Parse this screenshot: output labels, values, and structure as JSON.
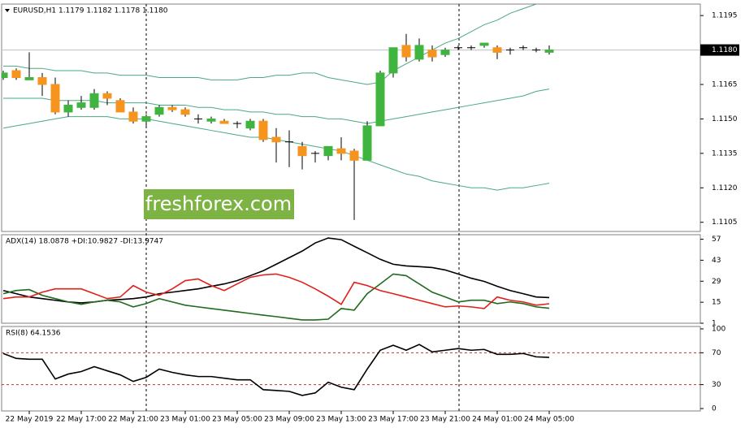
{
  "chart_data": [
    {
      "type": "candlestick",
      "title": "EURUSD,H1  1.1179 1.1182 1.1178 1.1180",
      "watermark": "freshforex.com",
      "categories": [
        null,
        null,
        "22 May 2019",
        null,
        null,
        null,
        "22 May 17:00",
        null,
        null,
        null,
        "22 May 21:00",
        null,
        null,
        null,
        "23 May 01:00",
        null,
        null,
        null,
        "23 May 05:00",
        null,
        null,
        null,
        "23 May 09:00",
        null,
        null,
        null,
        "23 May 13:00",
        null,
        null,
        null,
        "23 May 17:00",
        null,
        null,
        null,
        "23 May 21:00",
        null,
        null,
        null,
        "24 May 01:00",
        null,
        null,
        null,
        "24 May 05:00"
      ],
      "open": [
        1.1168,
        1.1171,
        1.1167,
        1.1168,
        1.1165,
        1.1153,
        1.1155,
        1.1155,
        1.1161,
        1.1158,
        1.1153,
        1.1149,
        1.1152,
        1.1155,
        1.1154,
        1.115,
        1.1149,
        1.1149,
        1.1148,
        1.1146,
        1.1149,
        1.1142,
        1.114,
        1.1138,
        1.1135,
        1.1134,
        1.1137,
        1.1136,
        1.1132,
        1.1147,
        1.117,
        1.1182,
        1.1176,
        1.118,
        1.1178,
        1.1181,
        1.1181,
        1.1182,
        1.1181,
        1.118,
        1.1181,
        1.118,
        1.1179
      ],
      "high": [
        1.1171,
        1.1172,
        1.1179,
        1.117,
        1.1168,
        1.1158,
        1.116,
        1.1163,
        1.1162,
        1.1159,
        1.1155,
        1.1152,
        1.1156,
        1.1156,
        1.1155,
        1.1152,
        1.1151,
        1.115,
        1.1149,
        1.115,
        1.115,
        1.1146,
        1.1145,
        1.114,
        1.1136,
        1.1138,
        1.1142,
        1.1137,
        1.1149,
        1.1171,
        1.1181,
        1.1187,
        1.1185,
        1.1182,
        1.1181,
        1.1182,
        1.1182,
        1.1183,
        1.1182,
        1.1181,
        1.1182,
        1.1181,
        1.1182
      ],
      "low": [
        1.1167,
        1.1167,
        1.1167,
        1.116,
        1.1152,
        1.1151,
        1.1154,
        1.1154,
        1.1156,
        1.1153,
        1.1148,
        1.1147,
        1.1151,
        1.1153,
        1.1151,
        1.1148,
        1.1148,
        1.1148,
        1.1146,
        1.1145,
        1.114,
        1.1131,
        1.1129,
        1.1128,
        1.1131,
        1.1132,
        1.1132,
        1.1106,
        1.1132,
        1.1147,
        1.1168,
        1.1175,
        1.1175,
        1.1175,
        1.1177,
        1.118,
        1.118,
        1.1181,
        1.1176,
        1.1178,
        1.118,
        1.1179,
        1.1178
      ],
      "close": [
        1.117,
        1.1168,
        1.1168,
        1.1165,
        1.1153,
        1.1156,
        1.1157,
        1.1161,
        1.1159,
        1.1153,
        1.1149,
        1.1151,
        1.1155,
        1.1154,
        1.1152,
        1.115,
        1.115,
        1.1148,
        1.1148,
        1.1149,
        1.1141,
        1.114,
        1.114,
        1.1134,
        1.1135,
        1.1138,
        1.1135,
        1.1132,
        1.1147,
        1.117,
        1.1181,
        1.1177,
        1.1182,
        1.1177,
        1.118,
        1.1181,
        1.1181,
        1.1183,
        1.1179,
        1.118,
        1.1181,
        1.118,
        1.118
      ],
      "up_color": "#3fb53f",
      "down_color": "#f7941d",
      "flat_color": "#000000",
      "bands": {
        "color": "#4aa883",
        "upper": [
          1.1173,
          1.1173,
          1.1172,
          1.1172,
          1.1171,
          1.1171,
          1.1171,
          1.117,
          1.117,
          1.1169,
          1.1169,
          1.1169,
          1.1168,
          1.1168,
          1.1168,
          1.1168,
          1.1167,
          1.1167,
          1.1167,
          1.1168,
          1.1168,
          1.1169,
          1.1169,
          1.117,
          1.117,
          1.1168,
          1.1167,
          1.1166,
          1.1165,
          1.1166,
          1.1171,
          1.1174,
          1.1177,
          1.118,
          1.1183,
          1.1185,
          1.1188,
          1.1191,
          1.1193,
          1.1196,
          1.1198,
          1.12,
          1.1202
        ],
        "middle": [
          1.1159,
          1.1159,
          1.1159,
          1.1159,
          1.1158,
          1.1158,
          1.1158,
          1.1158,
          1.1157,
          1.1157,
          1.1157,
          1.1157,
          1.1156,
          1.1156,
          1.1156,
          1.1155,
          1.1155,
          1.1154,
          1.1154,
          1.1153,
          1.1153,
          1.1152,
          1.1152,
          1.1151,
          1.1151,
          1.115,
          1.115,
          1.1149,
          1.1148,
          1.1149,
          1.115,
          1.1151,
          1.1152,
          1.1153,
          1.1154,
          1.1155,
          1.1156,
          1.1157,
          1.1158,
          1.1159,
          1.116,
          1.1162,
          1.1163
        ],
        "lower": [
          1.1146,
          1.1147,
          1.1148,
          1.1149,
          1.115,
          1.1151,
          1.1151,
          1.1151,
          1.1151,
          1.115,
          1.115,
          1.115,
          1.1149,
          1.1148,
          1.1147,
          1.1146,
          1.1145,
          1.1144,
          1.1143,
          1.1142,
          1.1142,
          1.1141,
          1.114,
          1.1139,
          1.1138,
          1.1137,
          1.1136,
          1.1134,
          1.1132,
          1.113,
          1.1128,
          1.1126,
          1.1125,
          1.1123,
          1.1122,
          1.1121,
          1.112,
          1.112,
          1.1119,
          1.112,
          1.112,
          1.1121,
          1.1122
        ]
      },
      "last_price": {
        "value": 1.118,
        "label": "1.1180"
      },
      "ylim": [
        1.1101,
        1.12
      ],
      "yticks": [
        1.1195,
        1.1165,
        {
          "value": 1.115,
          "label": "1.1150"
        },
        1.1135,
        {
          "value": 1.112,
          "label": "1.1120"
        },
        1.1105
      ]
    },
    {
      "type": "line",
      "title": "ADX(14) 18.0878 +DI:10.9827 -DI:13.9747",
      "series": [
        {
          "color": "#000000",
          "values": [
            22.8,
            20.7,
            18.5,
            17.4,
            16.3,
            15.2,
            14.6,
            15.2,
            16.3,
            16.8,
            17.4,
            18.5,
            20.7,
            21.7,
            22.8,
            23.9,
            25.6,
            27.2,
            29.4,
            32.7,
            36.0,
            40.3,
            44.7,
            49.1,
            54.5,
            57.8,
            56.7,
            52.3,
            48.0,
            43.6,
            40.3,
            39.2,
            38.7,
            38.1,
            36.5,
            33.8,
            31.0,
            28.9,
            25.6,
            22.8,
            20.7,
            18.5,
            18.1
          ]
        },
        {
          "color": "#1e6b1e",
          "values": [
            20.7,
            22.8,
            23.4,
            19.6,
            17.4,
            15.2,
            13.6,
            15.2,
            16.3,
            15.2,
            11.9,
            14.1,
            17.4,
            15.2,
            13.0,
            11.9,
            10.8,
            9.7,
            8.6,
            7.5,
            6.4,
            5.4,
            4.3,
            3.2,
            3.2,
            3.7,
            10.8,
            9.7,
            20.7,
            27.2,
            33.8,
            32.7,
            27.2,
            21.7,
            18.5,
            15.2,
            16.3,
            16.3,
            14.1,
            15.2,
            14.1,
            11.9,
            11.0
          ]
        },
        {
          "color": "#e0201b",
          "values": [
            17.4,
            18.5,
            18.5,
            21.7,
            23.9,
            23.9,
            23.9,
            20.7,
            17.4,
            18.5,
            26.1,
            21.7,
            19.6,
            23.9,
            29.4,
            30.5,
            26.1,
            22.8,
            27.2,
            31.6,
            33.2,
            33.8,
            31.6,
            28.3,
            23.9,
            19.0,
            13.6,
            28.3,
            26.1,
            22.8,
            20.7,
            18.5,
            16.3,
            14.1,
            11.9,
            12.5,
            11.9,
            10.8,
            18.5,
            16.3,
            15.2,
            13.0,
            14.0
          ]
        }
      ],
      "ylim": [
        1,
        60
      ],
      "yticks": [
        57,
        43,
        29,
        15,
        1
      ]
    },
    {
      "type": "line",
      "title": "RSI(8) 64.1536",
      "series": [
        {
          "color": "#000000",
          "values": [
            69.1,
            62.9,
            61.9,
            61.9,
            37.1,
            43.3,
            46.4,
            52.6,
            47.4,
            42.3,
            34.0,
            39.2,
            49.5,
            45.4,
            42.3,
            40.2,
            40.2,
            38.1,
            36.1,
            36.1,
            23.7,
            22.7,
            21.6,
            16.5,
            19.6,
            33.0,
            26.8,
            23.7,
            49.5,
            73.2,
            79.4,
            73.2,
            80.4,
            71.1,
            73.2,
            75.3,
            73.2,
            74.2,
            68.0,
            68.0,
            69.1,
            64.9,
            64.2
          ]
        }
      ],
      "levels": [
        70,
        30
      ],
      "level_color": "#c0392b",
      "ylim": [
        -3,
        103
      ],
      "yticks": [
        100,
        70,
        30,
        0
      ]
    }
  ]
}
